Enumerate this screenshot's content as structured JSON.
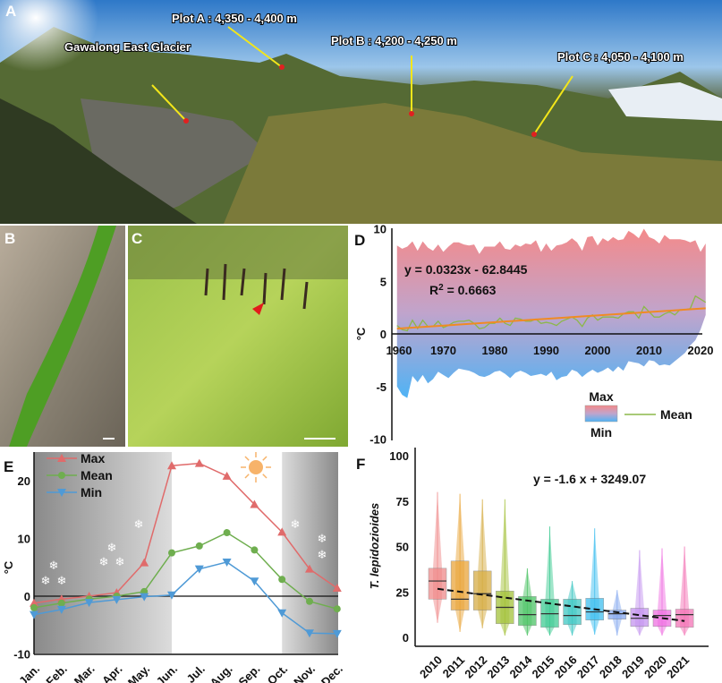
{
  "panels": {
    "a": "A",
    "b": "B",
    "c": "C",
    "d": "D",
    "e": "E",
    "f": "F"
  },
  "photo_a": {
    "labels": [
      "Plot A : 4,350 - 4,400 m",
      "Plot B : 4,200 - 4,250 m",
      "Gawalong East Glacier",
      "Plot C : 4,050 - 4,100 m"
    ]
  },
  "colors": {
    "max": "#e06b6b",
    "mean": "#6fae4f",
    "min": "#4f9ad6",
    "trend_d": "#f08a24"
  },
  "chart_data": [
    {
      "panel": "D",
      "type": "area",
      "xlabel": "",
      "ylabel": "°C",
      "xlim": [
        1960,
        2021
      ],
      "ylim": [
        -10,
        10
      ],
      "xticks": [
        "1960",
        "1970",
        "1980",
        "1990",
        "2000",
        "2010",
        "2020"
      ],
      "yticks": [
        "10",
        "5",
        "0",
        "-5",
        "-10"
      ],
      "equation": "y = 0.0323x - 62.8445",
      "r2_prefix": "R",
      "r2_sup": "2",
      "r2_value": " = 0.6663",
      "legend": {
        "max": "Max",
        "min": "Min",
        "mean": "Mean"
      },
      "years_start": 1961,
      "max": [
        8.4,
        8.1,
        8.3,
        8.8,
        7.9,
        8.8,
        8.2,
        7.9,
        8.5,
        7.8,
        8.3,
        8.7,
        8.7,
        8.5,
        8.4,
        8.5,
        7.6,
        8.3,
        8.3,
        8.3,
        8.8,
        8.1,
        8.0,
        8.5,
        8.3,
        8.6,
        8.5,
        8.9,
        7.8,
        8.6,
        7.9,
        8.4,
        8.5,
        8.7,
        9.1,
        8.7,
        7.9,
        9.2,
        9.3,
        8.4,
        9.1,
        8.8,
        9.2,
        8.9,
        9.0,
        9.8,
        9.5,
        9.1,
        10.0,
        9.2,
        9.0,
        8.6,
        9.4,
        9.0,
        9.0,
        9.0,
        8.9,
        8.7,
        8.9,
        7.8,
        8.6
      ],
      "min": [
        -5.0,
        -5.8,
        -6.1,
        -4.0,
        -4.6,
        -3.9,
        -4.7,
        -4.3,
        -3.6,
        -3.9,
        -4.2,
        -3.7,
        -3.3,
        -3.4,
        -3.5,
        -3.7,
        -4.0,
        -4.1,
        -3.9,
        -3.6,
        -3.5,
        -3.8,
        -4.2,
        -3.7,
        -3.5,
        -3.7,
        -4.0,
        -3.9,
        -3.8,
        -4.0,
        -3.6,
        -4.4,
        -4.1,
        -4.0,
        -3.4,
        -3.6,
        -4.1,
        -3.7,
        -3.4,
        -3.7,
        -3.5,
        -3.2,
        -3.6,
        -3.1,
        -3.5,
        -2.6,
        -2.7,
        -2.8,
        -3.1,
        -2.5,
        -2.6,
        -3.0,
        -2.9,
        -3.0,
        -2.6,
        -2.2,
        -1.8,
        -1.1,
        -0.6,
        0.4,
        1.8
      ],
      "mean": [
        0.8,
        0.4,
        0.3,
        1.3,
        0.5,
        1.3,
        0.7,
        0.7,
        1.2,
        0.6,
        0.8,
        1.1,
        1.2,
        1.2,
        1.3,
        1.0,
        0.5,
        0.6,
        1.0,
        1.0,
        1.5,
        1.0,
        0.8,
        1.5,
        1.4,
        1.2,
        1.2,
        1.4,
        1.0,
        1.1,
        1.0,
        0.8,
        1.2,
        1.4,
        1.6,
        1.3,
        0.7,
        1.5,
        1.8,
        1.3,
        1.6,
        1.6,
        1.6,
        1.5,
        1.9,
        2.1,
        2.1,
        1.5,
        2.6,
        2.1,
        1.6,
        1.6,
        1.9,
        2.1,
        1.8,
        2.3,
        2.3,
        2.4,
        3.6,
        3.3,
        3.0
      ],
      "trend": {
        "slope": 0.0323,
        "intercept": -62.8445
      }
    },
    {
      "panel": "E",
      "type": "line",
      "ylabel": "°C",
      "ylim": [
        -10,
        25
      ],
      "yticks": [
        "20",
        "10",
        "0",
        "-10"
      ],
      "categories": [
        "Jan.",
        "Feb.",
        "Mar.",
        "Apr.",
        "May.",
        "Jun.",
        "Jul.",
        "Aug.",
        "Sep.",
        "Oct.",
        "Nov.",
        "Dec."
      ],
      "series": [
        {
          "name": "Max",
          "marker": "triangle-up",
          "values": [
            -1.2,
            -0.5,
            0,
            0.6,
            5.8,
            22.6,
            23,
            20.8,
            15.9,
            11.1,
            4.7,
            1.4
          ]
        },
        {
          "name": "Mean",
          "marker": "circle",
          "values": [
            -2,
            -1.2,
            -0.5,
            0,
            0.8,
            7.5,
            8.7,
            11,
            8,
            2.9,
            -0.9,
            -2.2
          ]
        },
        {
          "name": "Min",
          "marker": "triangle-down",
          "values": [
            -3.2,
            -2.3,
            -1.1,
            -0.6,
            -0.1,
            0.2,
            4.7,
            5.9,
            2.6,
            -2.9,
            -6.4,
            -6.5
          ]
        }
      ],
      "shaded_months": [
        [
          "Jan.",
          "Jun."
        ],
        [
          "Oct.",
          "Dec."
        ]
      ]
    },
    {
      "panel": "F",
      "type": "box",
      "ylabel": "T. lepidozioides",
      "ylim": [
        0,
        100
      ],
      "yticks": [
        "100",
        "75",
        "50",
        "25",
        "0"
      ],
      "equation": "y =  -1.6 x +  3249.07",
      "categories": [
        "2010",
        "2011",
        "2012",
        "2013",
        "2014",
        "2015",
        "2016",
        "2017",
        "2018",
        "2019",
        "2020",
        "2021"
      ],
      "median": [
        31,
        21,
        24,
        16.5,
        12.5,
        13,
        12,
        14,
        13,
        10.5,
        12,
        12.5
      ],
      "q1": [
        21,
        15,
        15,
        7.5,
        6.5,
        5.5,
        7,
        9.5,
        10,
        6,
        6,
        5.5
      ],
      "q3": [
        38,
        42,
        36.5,
        25.5,
        22.5,
        21,
        21,
        21.5,
        15,
        16,
        15,
        15.5
      ],
      "min": [
        8,
        3,
        5,
        1,
        1,
        1,
        1,
        1.5,
        1,
        1,
        1,
        1
      ],
      "max": [
        80,
        79,
        76,
        76,
        38,
        61,
        31,
        60,
        26,
        48,
        49,
        50
      ],
      "box_colors": [
        "#f08a8a",
        "#eaa53a",
        "#d6ad45",
        "#a3c23a",
        "#4dc466",
        "#3fcb94",
        "#40c8c4",
        "#3fbff0",
        "#86a9f0",
        "#c493f0",
        "#f06fe2",
        "#f474b6"
      ],
      "trend": {
        "start": 26.7,
        "end": 9
      }
    }
  ]
}
